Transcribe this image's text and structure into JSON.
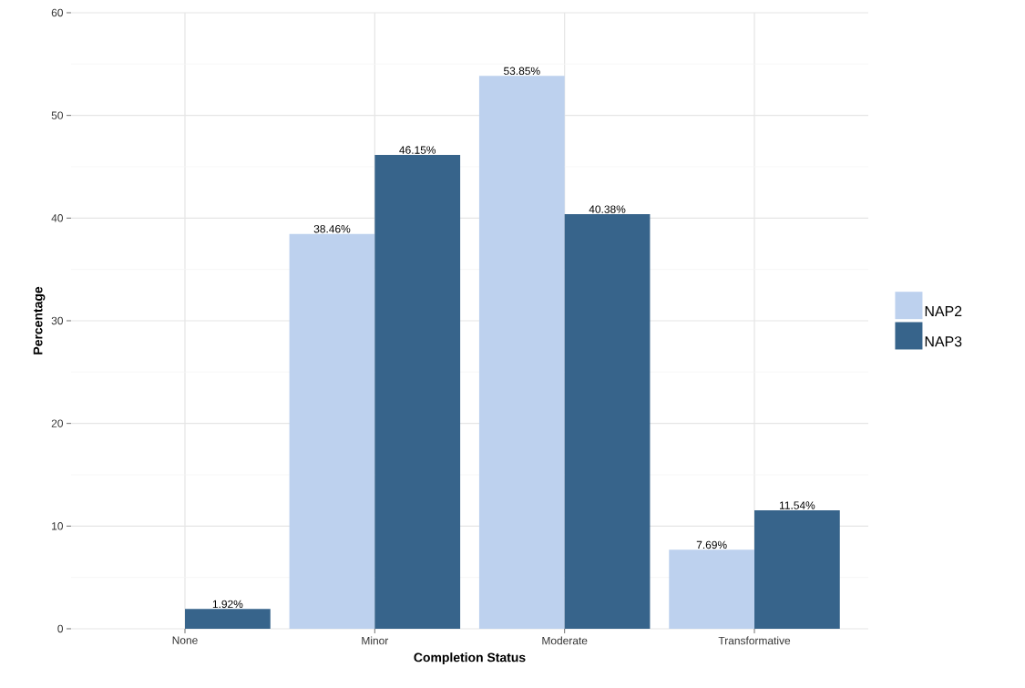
{
  "chart_data": {
    "type": "bar",
    "xlabel": "Completion Status",
    "ylabel": "Percentage",
    "categories": [
      "None",
      "Minor",
      "Moderate",
      "Transformative"
    ],
    "series": [
      {
        "name": "NAP2",
        "color": "#bdd1ee",
        "values": [
          null,
          38.46,
          53.85,
          7.69
        ],
        "value_labels": [
          null,
          "38.46%",
          "53.85%",
          "7.69%"
        ]
      },
      {
        "name": "NAP3",
        "color": "#37648b",
        "values": [
          1.92,
          46.15,
          40.38,
          11.54
        ],
        "value_labels": [
          "1.92%",
          "46.15%",
          "40.38%",
          "11.54%"
        ]
      }
    ],
    "ylim": [
      0,
      60
    ],
    "yticks": [
      0,
      10,
      20,
      30,
      40,
      50,
      60
    ],
    "grid": true,
    "legend": "right"
  }
}
